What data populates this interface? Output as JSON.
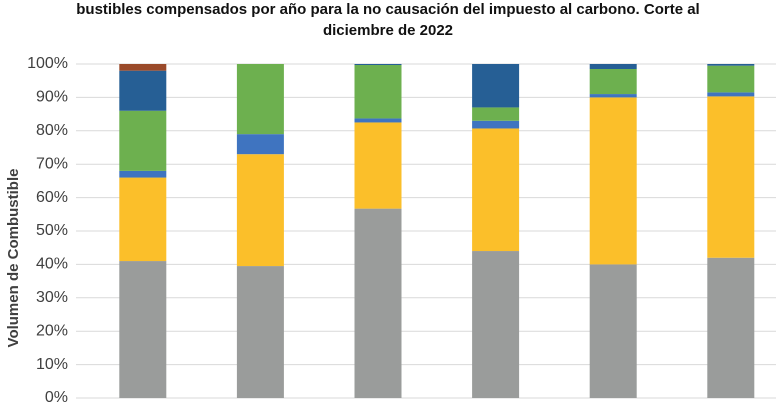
{
  "chart_data": {
    "type": "stacked_bar",
    "title": [
      "bustibles compensados por año para la no causación del impuesto al carbono. Corte al",
      "diciembre de 2022"
    ],
    "y_label": "Volumen de Combustible",
    "categories": [
      null,
      null,
      null,
      null,
      null,
      null
    ],
    "series": [
      {
        "color": "#9a9c9b",
        "values": [
          41,
          39.5,
          56.7,
          44,
          40,
          42
        ]
      },
      {
        "color": "#fbbf2a",
        "values": [
          25,
          33.5,
          25.8,
          36.7,
          50,
          48.3
        ]
      },
      {
        "color": "#3f74c0",
        "values": [
          2,
          6,
          1.2,
          2.3,
          1,
          1.2
        ]
      },
      {
        "color": "#6db04f",
        "values": [
          18,
          21,
          16,
          4,
          7.5,
          8
        ]
      },
      {
        "color": "#265f95",
        "values": [
          12,
          0,
          0.3,
          13,
          1.5,
          0.5
        ]
      },
      {
        "color": "#9a4a2a",
        "values": [
          2,
          0,
          0,
          0,
          0,
          0
        ]
      }
    ],
    "ylim": [
      0,
      100
    ],
    "yticks": [
      {
        "value": 0,
        "label": "0%"
      },
      {
        "value": 10,
        "label": "10%"
      },
      {
        "value": 20,
        "label": "20%"
      },
      {
        "value": 30,
        "label": "30%"
      },
      {
        "value": 40,
        "label": "40%"
      },
      {
        "value": 50,
        "label": "50%"
      },
      {
        "value": 60,
        "label": "60%"
      },
      {
        "value": 70,
        "label": "70%"
      },
      {
        "value": 80,
        "label": "80%"
      },
      {
        "value": 90,
        "label": "90%"
      },
      {
        "value": 100,
        "label": "100%"
      }
    ],
    "grid": true
  }
}
